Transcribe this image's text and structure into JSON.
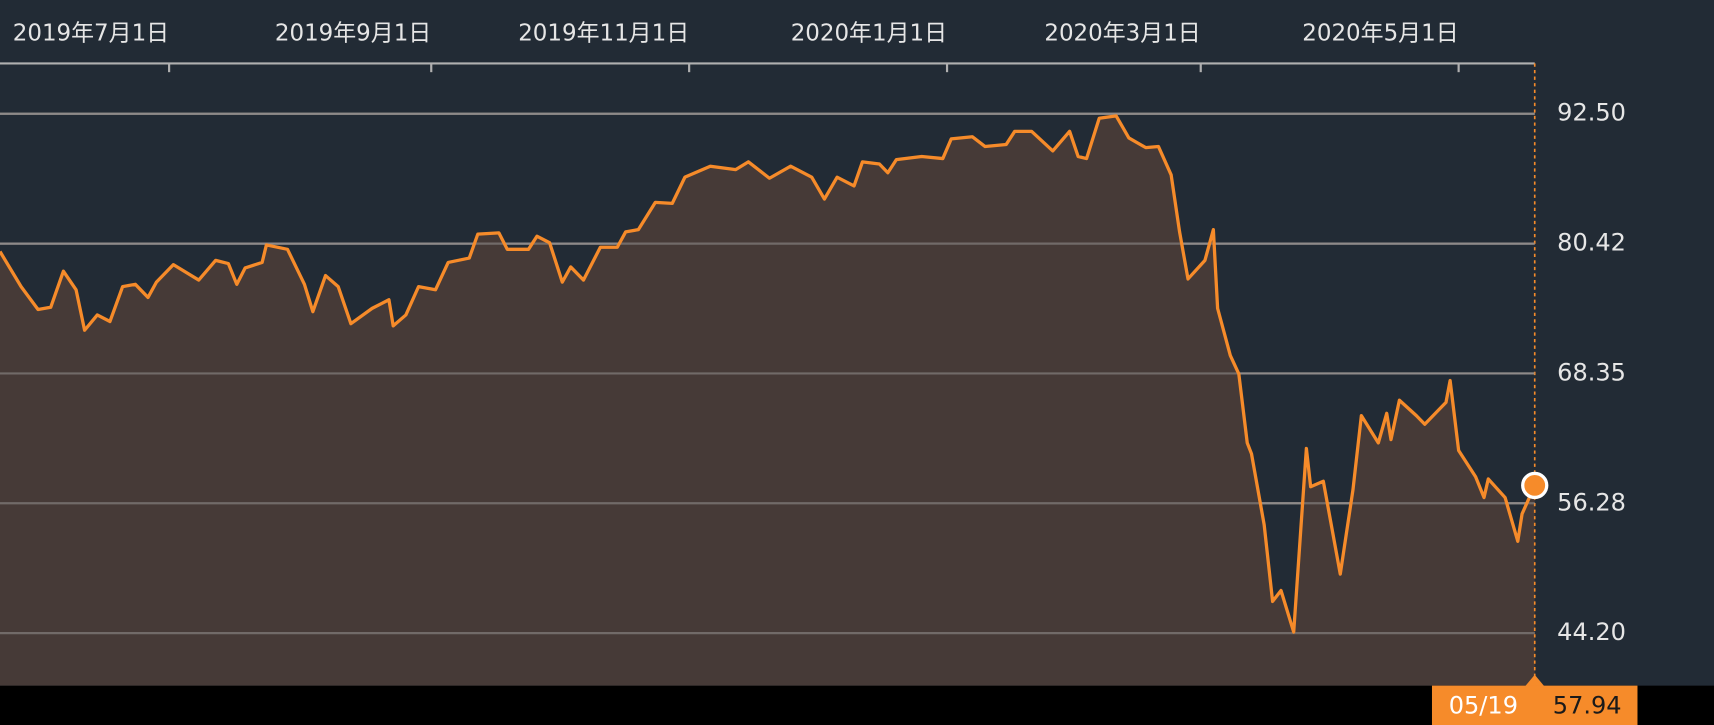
{
  "chart_data": {
    "type": "area",
    "x": [
      "2019-05-22",
      "2019-05-27",
      "2019-05-31",
      "2019-06-03",
      "2019-06-06",
      "2019-06-09",
      "2019-06-11",
      "2019-06-14",
      "2019-06-17",
      "2019-06-20",
      "2019-06-23",
      "2019-06-26",
      "2019-06-28",
      "2019-07-02",
      "2019-07-08",
      "2019-07-12",
      "2019-07-15",
      "2019-07-17",
      "2019-07-19",
      "2019-07-23",
      "2019-07-24",
      "2019-07-29",
      "2019-08-02",
      "2019-08-04",
      "2019-08-07",
      "2019-08-10",
      "2019-08-13",
      "2019-08-18",
      "2019-08-22",
      "2019-08-23",
      "2019-08-26",
      "2019-08-29",
      "2019-09-02",
      "2019-09-05",
      "2019-09-10",
      "2019-09-12",
      "2019-09-17",
      "2019-09-19",
      "2019-09-24",
      "2019-09-26",
      "2019-09-29",
      "2019-10-02",
      "2019-10-04",
      "2019-10-07",
      "2019-10-11",
      "2019-10-15",
      "2019-10-17",
      "2019-10-20",
      "2019-10-24",
      "2019-10-28",
      "2019-10-31",
      "2019-11-06",
      "2019-11-12",
      "2019-11-15",
      "2019-11-20",
      "2019-11-25",
      "2019-11-30",
      "2019-12-03",
      "2019-12-06",
      "2019-12-10",
      "2019-12-12",
      "2019-12-16",
      "2019-12-18",
      "2019-12-20",
      "2019-12-26",
      "2019-12-31",
      "2020-01-02",
      "2020-01-07",
      "2020-01-10",
      "2020-01-15",
      "2020-01-17",
      "2020-01-21",
      "2020-01-26",
      "2020-01-30",
      "2020-02-01",
      "2020-02-03",
      "2020-02-06",
      "2020-02-10",
      "2020-02-13",
      "2020-02-17",
      "2020-02-20",
      "2020-02-23",
      "2020-02-25",
      "2020-02-27",
      "2020-03-02",
      "2020-03-04",
      "2020-03-05",
      "2020-03-08",
      "2020-03-10",
      "2020-03-12",
      "2020-03-13",
      "2020-03-16",
      "2020-03-18",
      "2020-03-20",
      "2020-03-23",
      "2020-03-26",
      "2020-03-27",
      "2020-03-30",
      "2020-04-03",
      "2020-04-06",
      "2020-04-08",
      "2020-04-12",
      "2020-04-14",
      "2020-04-15",
      "2020-04-17",
      "2020-04-21",
      "2020-04-23",
      "2020-04-28",
      "2020-04-29",
      "2020-05-01",
      "2020-05-05",
      "2020-05-07",
      "2020-05-08",
      "2020-05-12",
      "2020-05-15",
      "2020-05-16",
      "2020-05-19"
    ],
    "series": [
      {
        "color": "#f68b2a",
        "values": [
          79.69,
          76.43,
          74.3,
          74.5,
          77.86,
          76.13,
          72.37,
          73.79,
          73.18,
          76.43,
          76.64,
          75.42,
          76.84,
          78.47,
          77.04,
          78.87,
          78.57,
          76.64,
          78.16,
          78.67,
          80.3,
          79.89,
          76.64,
          74.1,
          77.45,
          76.43,
          72.98,
          74.4,
          75.21,
          72.77,
          73.79,
          76.43,
          76.13,
          78.67,
          79.08,
          81.31,
          81.42,
          79.89,
          79.89,
          81.11,
          80.5,
          76.84,
          78.26,
          77.04,
          80.09,
          80.09,
          81.52,
          81.72,
          84.26,
          84.16,
          86.6,
          87.62,
          87.31,
          88.03,
          86.5,
          87.62,
          86.6,
          84.57,
          86.6,
          85.79,
          88.03,
          87.82,
          87.01,
          88.23,
          88.53,
          88.33,
          90.16,
          90.36,
          89.45,
          89.65,
          90.87,
          90.87,
          89.04,
          90.87,
          88.53,
          88.33,
          92.09,
          92.3,
          90.26,
          89.35,
          89.45,
          86.81,
          81.52,
          77.14,
          78.87,
          81.72,
          74.4,
          70.03,
          68.3,
          61.89,
          60.88,
          54.27,
          47.15,
          48.17,
          44.3,
          61.38,
          57.82,
          58.33,
          49.69,
          57.52,
          64.43,
          61.89,
          64.64,
          62.2,
          65.86,
          64.43,
          63.62,
          65.66,
          67.69,
          61.18,
          58.74,
          56.81,
          58.54,
          56.81,
          52.74,
          55.28,
          57.94
        ]
      }
    ],
    "area_color": "#463a37",
    "xlim": [
      "2019-05-22",
      "2020-05-19"
    ],
    "xticks": [
      {
        "value": "2019-07-01",
        "label": "2019年7月1日"
      },
      {
        "value": "2019-09-01",
        "label": "2019年9月1日"
      },
      {
        "value": "2019-11-01",
        "label": "2019年11月1日"
      },
      {
        "value": "2020-01-01",
        "label": "2020年1月1日"
      },
      {
        "value": "2020-03-01",
        "label": "2020年3月1日"
      },
      {
        "value": "2020-05-01",
        "label": "2020年5月1日"
      }
    ],
    "ylim": [
      39.32,
      97.18
    ],
    "yticks": [
      {
        "value": 44.2,
        "label": "44.20"
      },
      56.28,
      68.35,
      80.42,
      {
        "value": 92.5,
        "label": "92.50"
      }
    ],
    "grid": true,
    "tooltip": {
      "date": "05/19"
    }
  }
}
